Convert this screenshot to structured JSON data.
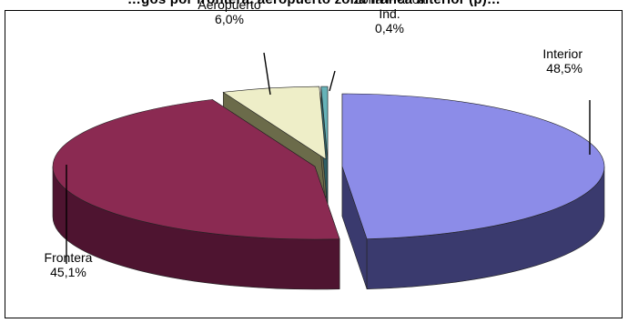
{
  "chart_data": {
    "type": "pie",
    "title": "…gos por frontera, aeropuerto zona franca interior (p)…",
    "style": "3d-exploded",
    "slices": [
      {
        "name": "Interior",
        "value": 48.5,
        "label": "48,5%",
        "color": "#8c8ce8",
        "side_color": "#3a3a6e"
      },
      {
        "name": "Frontera",
        "value": 45.1,
        "label": "45,1%",
        "color": "#8b2a52",
        "side_color": "#4e1430"
      },
      {
        "name": "Aeropuerto",
        "value": 6.0,
        "label": "6,0%",
        "color": "#eeeec8",
        "side_color": "#6b6b4a"
      },
      {
        "name": "Zona Franca Ind.",
        "name_lines": [
          "Zona Franca",
          "Ind."
        ],
        "value": 0.4,
        "label": "0,4%",
        "color": "#66b2b8",
        "side_color": "#2e5e64"
      }
    ]
  }
}
